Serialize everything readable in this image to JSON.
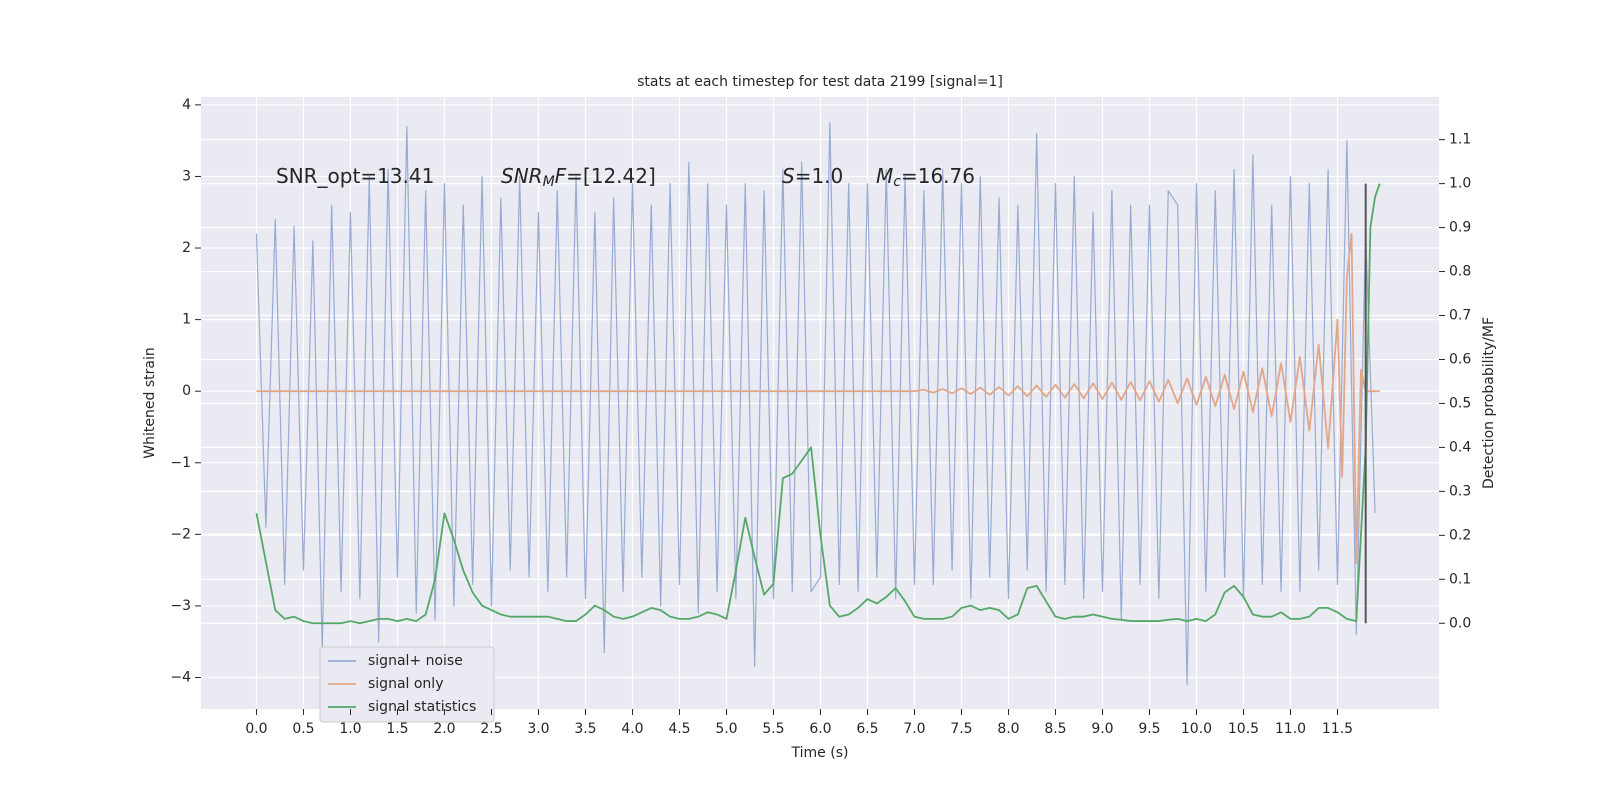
{
  "chart_data": {
    "type": "line",
    "title": "stats at each timestep for test data 2199 [signal=1]",
    "x_label": "Time (s)",
    "y_label": "Whitened strain",
    "y2_label": "Detection probability/MF",
    "xlim": [
      -0.59,
      12.58
    ],
    "ylim": [
      -4.44,
      4.11
    ],
    "y2lim": [
      -0.195,
      1.197
    ],
    "xticks": [
      {
        "value": 0,
        "label": "0.0"
      },
      0.5,
      {
        "value": 1,
        "label": "1.0"
      },
      1.5,
      {
        "value": 2,
        "label": "2.0"
      },
      2.5,
      {
        "value": 3,
        "label": "3.0"
      },
      3.5,
      {
        "value": 4,
        "label": "4.0"
      },
      4.5,
      {
        "value": 5,
        "label": "5.0"
      },
      5.5,
      {
        "value": 6,
        "label": "6.0"
      },
      6.5,
      {
        "value": 7,
        "label": "7.0"
      },
      7.5,
      {
        "value": 8,
        "label": "8.0"
      },
      8.5,
      {
        "value": 9,
        "label": "9.0"
      },
      9.5,
      {
        "value": 10,
        "label": "10.0"
      },
      10.5,
      {
        "value": 11,
        "label": "11.0"
      },
      11.5
    ],
    "yticks": [
      {
        "value": -4,
        "label": "−4"
      },
      {
        "value": -3,
        "label": "−3"
      },
      {
        "value": -2,
        "label": "−2"
      },
      {
        "value": -1,
        "label": "−1"
      },
      0,
      1,
      2,
      3,
      4
    ],
    "y2ticks": [
      {
        "value": 0,
        "label": "0.0"
      },
      0.1,
      0.2,
      0.3,
      0.4,
      0.5,
      0.6,
      0.7,
      0.8,
      0.9,
      {
        "value": 1,
        "label": "1.0"
      },
      1.1
    ],
    "grid": true,
    "legend": "lower left",
    "annotations": [
      {
        "parts": [
          {
            "text": "SNR_opt=13.41"
          }
        ]
      },
      {
        "parts": [
          {
            "text": "SNR",
            "style": "italic"
          },
          {
            "text": "M",
            "style": "italic-sub"
          },
          {
            "text": "F",
            "style": "italic"
          },
          {
            "text": "=[12.42]"
          }
        ]
      },
      {
        "parts": [
          {
            "text": "S",
            "style": "italic"
          },
          {
            "text": "=1.0"
          }
        ]
      },
      {
        "parts": [
          {
            "text": "M",
            "style": "italic"
          },
          {
            "text": "c",
            "style": "italic-sub"
          },
          {
            "text": "=16.76"
          }
        ]
      }
    ],
    "merger_line": {
      "x": 11.8,
      "ymin": 0,
      "ymax": 1,
      "color": "#555555"
    },
    "series": [
      {
        "name": "signal+ noise",
        "color": "#98abd2",
        "x": [
          0,
          0.1,
          0.2,
          0.3,
          0.4,
          0.5,
          0.6,
          0.7,
          0.8,
          0.9,
          1,
          1.1,
          1.2,
          1.3,
          1.4,
          1.5,
          1.6,
          1.7,
          1.8,
          1.9,
          2,
          2.1,
          2.2,
          2.3,
          2.4,
          2.5,
          2.6,
          2.7,
          2.8,
          2.9,
          3,
          3.1,
          3.2,
          3.3,
          3.4,
          3.5,
          3.6,
          3.7,
          3.8,
          3.9,
          4,
          4.1,
          4.2,
          4.3,
          4.4,
          4.5,
          4.6,
          4.7,
          4.8,
          4.9,
          5,
          5.1,
          5.2,
          5.3,
          5.4,
          5.5,
          5.6,
          5.7,
          5.8,
          5.9,
          6,
          6.1,
          6.2,
          6.3,
          6.4,
          6.5,
          6.6,
          6.7,
          6.8,
          6.9,
          7,
          7.1,
          7.2,
          7.3,
          7.4,
          7.5,
          7.6,
          7.7,
          7.8,
          7.9,
          8,
          8.1,
          8.2,
          8.3,
          8.4,
          8.5,
          8.6,
          8.7,
          8.8,
          8.9,
          9,
          9.1,
          9.2,
          9.3,
          9.4,
          9.5,
          9.6,
          9.7,
          9.8,
          9.9,
          10,
          10.1,
          10.2,
          10.3,
          10.4,
          10.5,
          10.6,
          10.7,
          10.8,
          10.9,
          11,
          11.1,
          11.2,
          11.3,
          11.4,
          11.5,
          11.6,
          11.7,
          11.8,
          11.9
        ],
        "values": [
          2.2,
          -1.9,
          2.4,
          -2.7,
          2.3,
          -2.5,
          2.1,
          -3.6,
          2.6,
          -2.8,
          2.5,
          -2.9,
          3.0,
          -3.5,
          3.1,
          -2.6,
          3.7,
          -3.1,
          2.8,
          -3.2,
          2.9,
          -3.0,
          2.6,
          -2.7,
          3.0,
          -3.0,
          2.7,
          -2.5,
          3.0,
          -2.6,
          2.5,
          -2.8,
          2.8,
          -2.6,
          3.0,
          -2.9,
          2.5,
          -3.65,
          2.7,
          -2.8,
          2.9,
          -2.6,
          2.6,
          -3.0,
          2.9,
          -2.7,
          3.2,
          -3.1,
          2.9,
          -2.8,
          2.6,
          -2.9,
          2.9,
          -3.85,
          2.8,
          -2.9,
          3.1,
          -2.8,
          3.2,
          -2.8,
          -2.6,
          3.75,
          -2.7,
          2.9,
          -2.8,
          2.9,
          -2.6,
          3.1,
          -2.9,
          3.0,
          -2.7,
          2.8,
          -2.7,
          3.1,
          -2.5,
          2.9,
          -2.9,
          3.0,
          -2.6,
          2.7,
          -2.9,
          2.6,
          -2.5,
          3.6,
          -2.8,
          2.9,
          -2.7,
          3.0,
          -2.9,
          2.5,
          -2.8,
          2.8,
          -3.2,
          2.6,
          -2.7,
          2.6,
          -2.9,
          2.8,
          2.6,
          -4.1,
          2.9,
          -2.8,
          2.8,
          -2.6,
          3.1,
          -2.9,
          3.3,
          -2.7,
          2.6,
          -2.8,
          3.0,
          -2.8,
          2.9,
          -2.5,
          3.1,
          -2.7,
          3.5,
          -3.4,
          2.2,
          -1.7
        ]
      },
      {
        "name": "signal only",
        "color": "#e2a789",
        "x": [
          0,
          7,
          7.1,
          7.2,
          7.3,
          7.4,
          7.5,
          7.6,
          7.7,
          7.8,
          7.9,
          8,
          8.1,
          8.2,
          8.3,
          8.4,
          8.5,
          8.6,
          8.7,
          8.8,
          8.9,
          9,
          9.1,
          9.2,
          9.3,
          9.4,
          9.5,
          9.6,
          9.7,
          9.8,
          9.9,
          10,
          10.1,
          10.2,
          10.3,
          10.4,
          10.5,
          10.6,
          10.7,
          10.8,
          10.9,
          11,
          11.1,
          11.2,
          11.3,
          11.4,
          11.5,
          11.55,
          11.6,
          11.65,
          11.7,
          11.75,
          11.8,
          11.95
        ],
        "values": [
          0,
          0,
          0.02,
          -0.02,
          0.03,
          -0.03,
          0.04,
          -0.04,
          0.05,
          -0.05,
          0.06,
          -0.06,
          0.07,
          -0.07,
          0.08,
          -0.08,
          0.09,
          -0.09,
          0.1,
          -0.1,
          0.11,
          -0.11,
          0.12,
          -0.12,
          0.13,
          -0.13,
          0.14,
          -0.15,
          0.16,
          -0.17,
          0.18,
          -0.19,
          0.2,
          -0.21,
          0.23,
          -0.25,
          0.27,
          -0.29,
          0.32,
          -0.35,
          0.39,
          -0.43,
          0.48,
          -0.55,
          0.65,
          -0.8,
          1.0,
          -1.2,
          1.6,
          2.2,
          -2.4,
          0.3,
          0,
          0
        ]
      },
      {
        "name": "signal statistics",
        "color": "#55a868",
        "axis": "y2",
        "x": [
          0,
          0.1,
          0.2,
          0.3,
          0.4,
          0.5,
          0.6,
          0.7,
          0.8,
          0.9,
          1,
          1.1,
          1.2,
          1.3,
          1.4,
          1.5,
          1.6,
          1.7,
          1.8,
          1.9,
          2,
          2.1,
          2.2,
          2.3,
          2.4,
          2.5,
          2.6,
          2.7,
          2.8,
          2.9,
          3,
          3.1,
          3.2,
          3.3,
          3.4,
          3.5,
          3.6,
          3.7,
          3.8,
          3.9,
          4,
          4.1,
          4.2,
          4.3,
          4.4,
          4.5,
          4.6,
          4.7,
          4.8,
          4.9,
          5,
          5.1,
          5.2,
          5.3,
          5.4,
          5.5,
          5.6,
          5.7,
          5.8,
          5.9,
          6,
          6.1,
          6.2,
          6.3,
          6.4,
          6.5,
          6.6,
          6.7,
          6.8,
          6.9,
          7,
          7.1,
          7.2,
          7.3,
          7.4,
          7.5,
          7.6,
          7.7,
          7.8,
          7.9,
          8,
          8.1,
          8.2,
          8.3,
          8.4,
          8.5,
          8.6,
          8.7,
          8.8,
          8.9,
          9,
          9.1,
          9.2,
          9.3,
          9.4,
          9.5,
          9.6,
          9.7,
          9.8,
          9.9,
          10,
          10.1,
          10.2,
          10.3,
          10.4,
          10.5,
          10.6,
          10.7,
          10.8,
          10.9,
          11,
          11.1,
          11.2,
          11.3,
          11.4,
          11.5,
          11.6,
          11.7,
          11.8,
          11.85,
          11.9,
          11.95
        ],
        "values": [
          0.25,
          0.14,
          0.03,
          0.01,
          0.015,
          0.005,
          0,
          0,
          0,
          0,
          0.005,
          0,
          0.005,
          0.01,
          0.01,
          0.005,
          0.01,
          0.005,
          0.02,
          0.1,
          0.25,
          0.19,
          0.12,
          0.07,
          0.04,
          0.03,
          0.02,
          0.015,
          0.015,
          0.015,
          0.015,
          0.015,
          0.01,
          0.005,
          0.005,
          0.02,
          0.04,
          0.03,
          0.015,
          0.01,
          0.015,
          0.025,
          0.035,
          0.03,
          0.015,
          0.01,
          0.01,
          0.015,
          0.025,
          0.02,
          0.01,
          0.12,
          0.24,
          0.15,
          0.065,
          0.09,
          0.33,
          0.34,
          0.37,
          0.4,
          0.2,
          0.04,
          0.015,
          0.02,
          0.035,
          0.055,
          0.045,
          0.06,
          0.08,
          0.05,
          0.015,
          0.01,
          0.01,
          0.01,
          0.015,
          0.035,
          0.04,
          0.03,
          0.035,
          0.03,
          0.01,
          0.02,
          0.08,
          0.085,
          0.05,
          0.015,
          0.01,
          0.015,
          0.015,
          0.02,
          0.015,
          0.01,
          0.008,
          0.005,
          0.005,
          0.005,
          0.005,
          0.008,
          0.01,
          0.005,
          0.01,
          0.005,
          0.02,
          0.07,
          0.085,
          0.06,
          0.02,
          0.015,
          0.015,
          0.025,
          0.01,
          0.01,
          0.015,
          0.035,
          0.035,
          0.025,
          0.01,
          0.005,
          0.4,
          0.9,
          0.97,
          1.0
        ]
      }
    ]
  }
}
